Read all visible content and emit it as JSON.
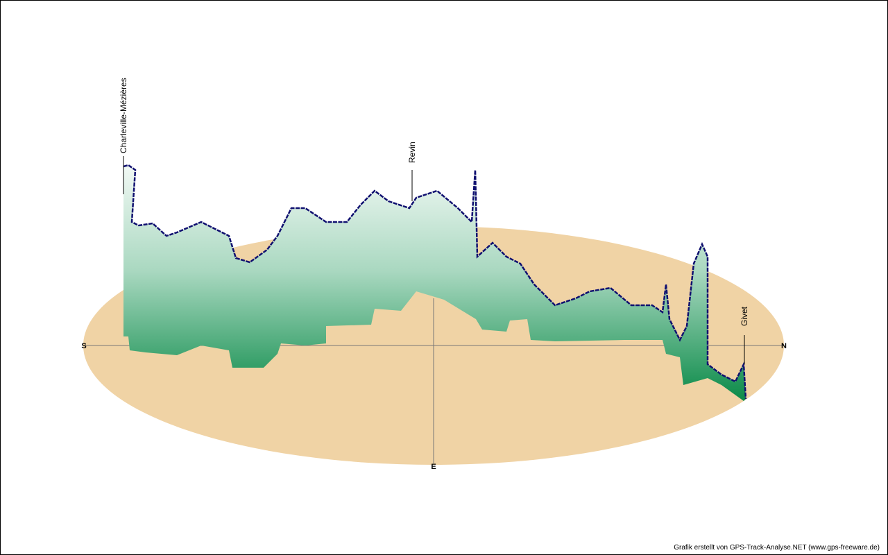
{
  "compass": {
    "south": "S",
    "north": "N",
    "east": "E"
  },
  "places": [
    {
      "label": "Charleville-Mézières"
    },
    {
      "label": "Revin"
    },
    {
      "label": "Givet"
    }
  ],
  "footer": "Grafik erstellt von GPS-Track-Analyse.NET (www.gps-freeware.de)"
}
